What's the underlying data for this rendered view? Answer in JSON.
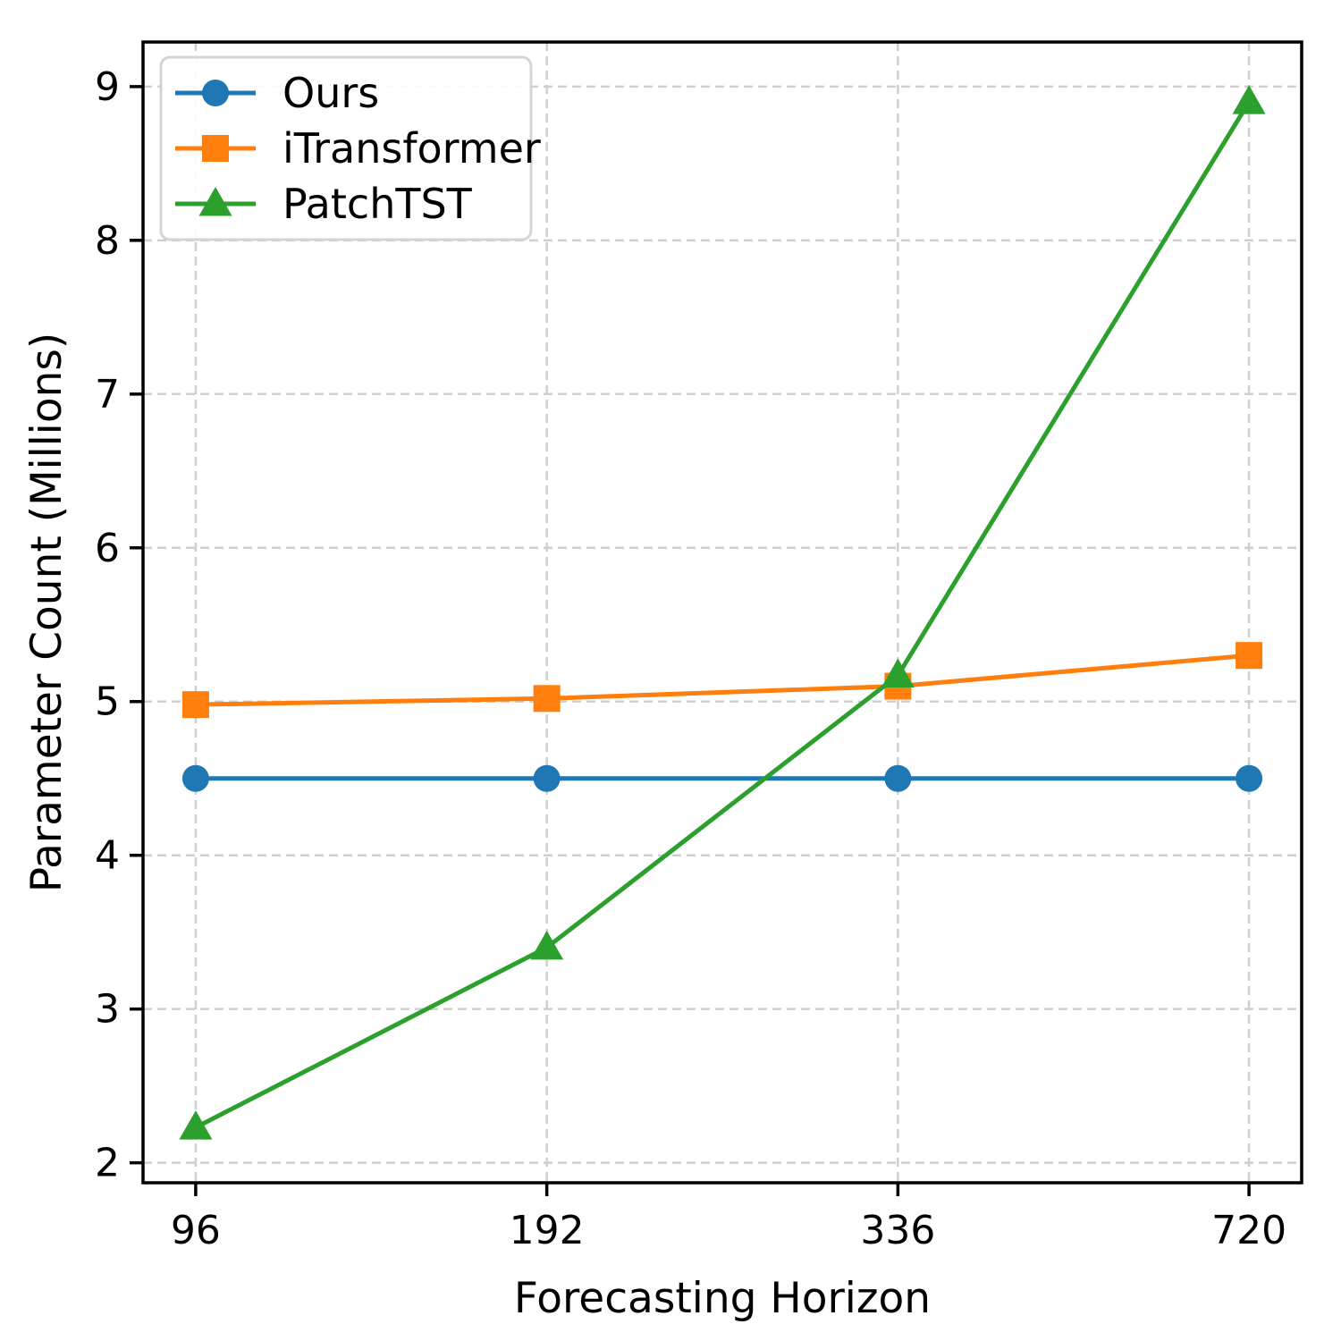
{
  "chart_data": {
    "type": "line",
    "title": "",
    "xlabel": "Forecasting Horizon",
    "ylabel": "Parameter Count (Millions)",
    "categories": [
      "96",
      "192",
      "336",
      "720"
    ],
    "series": [
      {
        "name": "Ours",
        "color": "#1f77b4",
        "marker": "circle",
        "values": [
          4.5,
          4.5,
          4.5,
          4.5
        ]
      },
      {
        "name": "iTransformer",
        "color": "#ff7f0e",
        "marker": "square",
        "values": [
          4.98,
          5.02,
          5.1,
          5.3
        ]
      },
      {
        "name": "PatchTST",
        "color": "#2ca02c",
        "marker": "triangle",
        "values": [
          2.23,
          3.4,
          5.17,
          8.9
        ]
      }
    ],
    "yticks": [
      2,
      3,
      4,
      5,
      6,
      7,
      8,
      9
    ],
    "ylim": [
      1.87,
      9.29
    ],
    "xlim_index": [
      -0.15,
      3.15
    ],
    "grid": true,
    "grid_style": "dashed",
    "grid_color": "#cfcfcf",
    "axis_color": "#000000",
    "legend_position": "upper-left",
    "legend_entries": [
      "Ours",
      "iTransformer",
      "PatchTST"
    ]
  }
}
